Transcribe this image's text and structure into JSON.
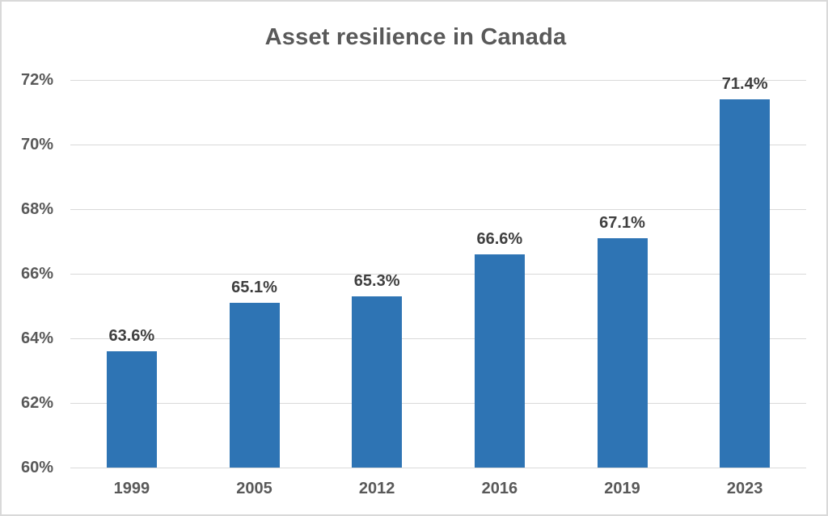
{
  "page": {
    "background": "#FFFFFF",
    "frame_border_color": "#D9D9D9"
  },
  "chart_data": {
    "type": "bar",
    "title": "Asset resilience in Canada",
    "categories": [
      "1999",
      "2005",
      "2012",
      "2016",
      "2019",
      "2023"
    ],
    "values": [
      63.6,
      65.1,
      65.3,
      66.6,
      67.1,
      71.4
    ],
    "value_labels": [
      "63.6%",
      "65.1%",
      "65.3%",
      "66.6%",
      "67.1%",
      "71.4%"
    ],
    "xlabel": "",
    "ylabel": "",
    "ylim": [
      60,
      72
    ],
    "ytick_step": 2,
    "ytick_labels": [
      "60%",
      "62%",
      "64%",
      "66%",
      "68%",
      "70%",
      "72%"
    ],
    "grid": true,
    "legend": false,
    "colors": {
      "bar": "#2E74B4",
      "grid": "#D9D9D9",
      "axis_text": "#595959",
      "value_label_text": "#3F3F3F",
      "title_text": "#595959"
    }
  }
}
